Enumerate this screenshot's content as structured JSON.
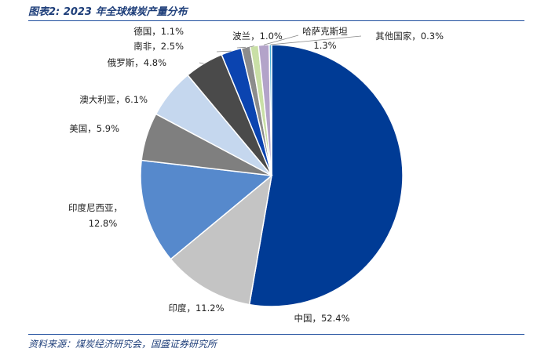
{
  "title": "图表2:  2023 年全球煤炭产量分布",
  "source": "资料来源：煤炭经济研究会，国盛证券研究所",
  "chart_data": {
    "type": "pie",
    "slices": [
      {
        "name": "中国",
        "value": 52.4,
        "label": "中国，52.4%",
        "color": "#003b95"
      },
      {
        "name": "印度",
        "value": 11.2,
        "label": "印度，11.2%",
        "color": "#c4c4c4"
      },
      {
        "name": "印度尼西亚",
        "value": 12.8,
        "label": "印度尼西亚，",
        "label2": "12.8%",
        "color": "#5689cc"
      },
      {
        "name": "美国",
        "value": 5.9,
        "label": "美国，5.9%",
        "color": "#7f7f7f"
      },
      {
        "name": "澳大利亚",
        "value": 6.1,
        "label": "澳大利亚，6.1%",
        "color": "#c5d7ee"
      },
      {
        "name": "俄罗斯",
        "value": 4.8,
        "label": "俄罗斯，4.8%",
        "color": "#4a4a4a"
      },
      {
        "name": "南非",
        "value": 2.5,
        "label": "南非，2.5%",
        "color": "#0b44b0"
      },
      {
        "name": "德国",
        "value": 1.1,
        "label": "德国，1.1%",
        "color": "#8c8c8c"
      },
      {
        "name": "波兰",
        "value": 1.0,
        "label": "波兰，1.0%",
        "color": "#c9dfa6"
      },
      {
        "name": "哈萨克斯坦",
        "value": 1.3,
        "label": "哈萨克斯坦",
        "label2": "1.3%",
        "color": "#b3a3c9"
      },
      {
        "name": "其他国家",
        "value": 0.3,
        "label": "其他国家，0.3%",
        "color": "#4bb0d8"
      }
    ]
  }
}
